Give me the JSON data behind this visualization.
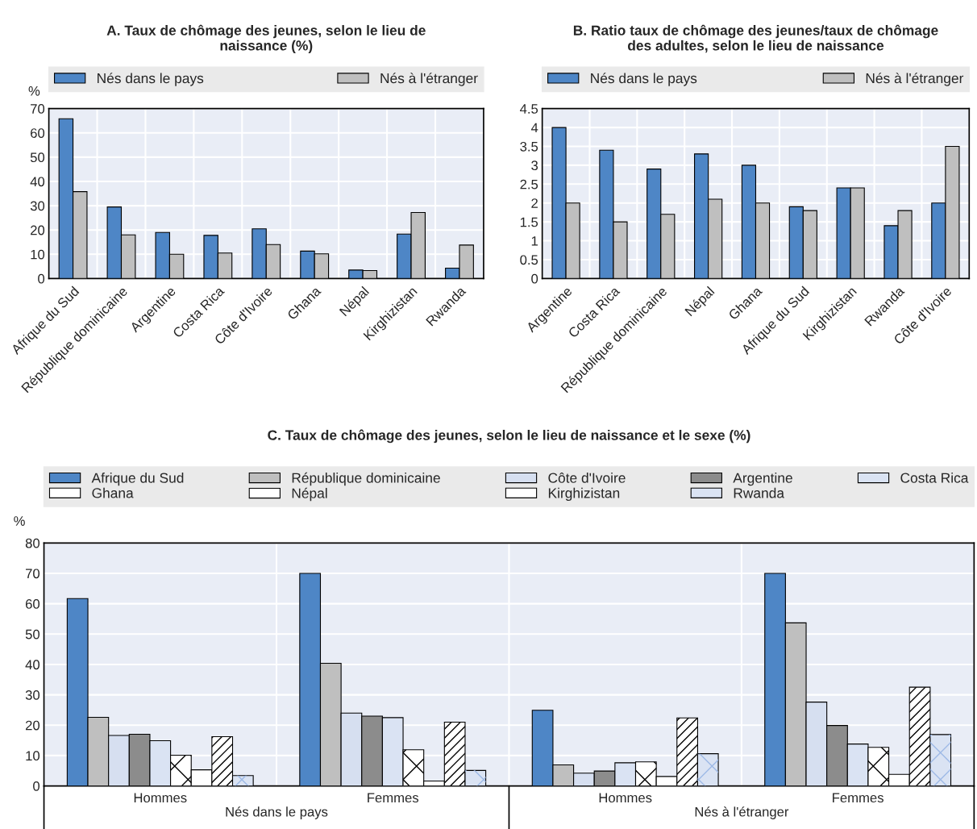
{
  "chart_data": [
    {
      "type": "bar",
      "title": "A. Taux de chômage des jeunes, selon le lieu de\nnaissance (%)",
      "ylabel": "%",
      "categories": [
        "Afrique du Sud",
        "République dominicaine",
        "Argentine",
        "Costa Rica",
        "Côte d'Ivoire",
        "Ghana",
        "Népal",
        "Kirghizistan",
        "Rwanda"
      ],
      "series": [
        {
          "name": "Nés dans le pays",
          "color": "#4e86c6",
          "values": [
            65.8,
            29.5,
            19,
            17.8,
            20.5,
            11.3,
            3.5,
            18.3,
            4.3
          ]
        },
        {
          "name": "Nés à l'étranger",
          "color": "#bfbfbf",
          "values": [
            35.8,
            18,
            10,
            10.5,
            14,
            10.2,
            3.3,
            27.2,
            13.8
          ]
        }
      ],
      "ylim": [
        0,
        70
      ],
      "yticks": [
        0,
        10,
        20,
        30,
        40,
        50,
        60,
        70
      ],
      "grid": true,
      "legend": "top"
    },
    {
      "type": "bar",
      "title": "B. Ratio taux de chômage des jeunes/taux de chômage\ndes adultes, selon le lieu de naissance",
      "categories": [
        "Argentine",
        "Costa Rica",
        "République dominicaine",
        "Népal",
        "Ghana",
        "Afrique du Sud",
        "Kirghizistan",
        "Rwanda",
        "Côte d'Ivoire"
      ],
      "series": [
        {
          "name": "Nés dans le pays",
          "color": "#4e86c6",
          "values": [
            4,
            3.4,
            2.9,
            3.3,
            3,
            1.9,
            2.4,
            1.4,
            2
          ]
        },
        {
          "name": "Nés à l'étranger",
          "color": "#bfbfbf",
          "values": [
            2,
            1.5,
            1.7,
            2.1,
            2,
            1.8,
            2.4,
            1.8,
            3.5
          ]
        }
      ],
      "ylim": [
        0,
        4.5
      ],
      "yticks": [
        0,
        0.5,
        1,
        1.5,
        2,
        2.5,
        3,
        3.5,
        4,
        4.5
      ],
      "grid": true,
      "legend": "top"
    },
    {
      "type": "bar",
      "title": "C. Taux de chômage des jeunes, selon le lieu de naissance et le sexe (%)",
      "ylabel": "%",
      "categories": [
        "Hommes",
        "Femmes",
        "Hommes",
        "Femmes"
      ],
      "annotations": [
        "Nés dans le pays",
        "Nés à l'étranger"
      ],
      "series": [
        {
          "name": "Afrique du Sud",
          "color": "#4e86c6",
          "values": [
            61.7,
            70,
            24.9,
            70
          ]
        },
        {
          "name": "République dominicaine",
          "color": "#bfbfbf",
          "values": [
            22.6,
            40.4,
            6.9,
            53.7
          ]
        },
        {
          "name": "Côte d'Ivoire",
          "color": "#d6dff0",
          "values": [
            16.6,
            24,
            4.2,
            27.6
          ]
        },
        {
          "name": "Argentine",
          "color": "#8c8c8c",
          "values": [
            17,
            23,
            4.9,
            19.9
          ]
        },
        {
          "name": "Costa Rica",
          "color": "#dae3f3",
          "values": [
            14.9,
            22.5,
            7.6,
            13.8
          ]
        },
        {
          "name": "Ghana",
          "color": "#ffffff",
          "values": [
            10.1,
            11.9,
            7.9,
            12.7
          ]
        },
        {
          "name": "Népal",
          "color": "#ffffff",
          "values": [
            5.3,
            1.6,
            3.1,
            3.8
          ]
        },
        {
          "name": "Kirghizistan",
          "color": "#ffffff",
          "values": [
            16.2,
            21,
            22.4,
            32.5
          ]
        },
        {
          "name": "Rwanda",
          "color": "#dae3f3",
          "values": [
            3.4,
            5.1,
            10.6,
            16.9
          ]
        }
      ],
      "ylim": [
        0,
        80
      ],
      "yticks": [
        0,
        10,
        20,
        30,
        40,
        50,
        60,
        70,
        80
      ],
      "grid": true,
      "legend": "top"
    }
  ]
}
